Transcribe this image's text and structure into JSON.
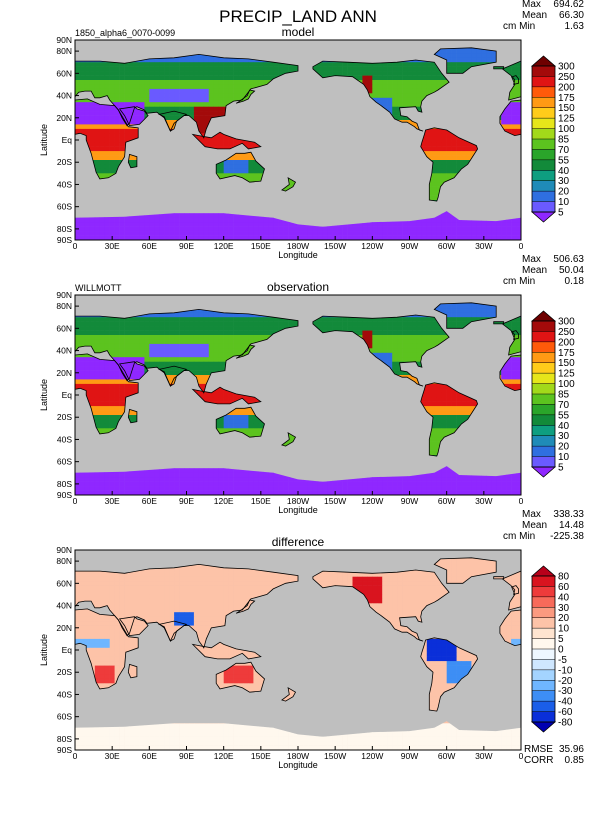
{
  "page": {
    "title": "PRECIP_LAND ANN",
    "case_label": "1850_alpha6_0070-0099",
    "units": "cm"
  },
  "axes": {
    "xlabel": "Longitude",
    "ylabel": "Latitude",
    "xticks": [
      "0",
      "30E",
      "60E",
      "90E",
      "120E",
      "150E",
      "180W",
      "150W",
      "120W",
      "90W",
      "60W",
      "30W",
      "0"
    ],
    "yticks": [
      "90N",
      "80N",
      "60N",
      "40N",
      "20N",
      "Eq",
      "20S",
      "40S",
      "60S",
      "80S",
      "90S"
    ]
  },
  "chart_data": [
    {
      "type": "heatmap",
      "panel": "model",
      "title": "model",
      "left_label": "1850_alpha6_0070-0099",
      "stats": {
        "max_label": "Max",
        "max": "694.62",
        "mean_label": "Mean",
        "mean": "66.30",
        "min_label": "cm Min",
        "min": "1.63"
      },
      "colorbar": {
        "levels": [
          "5",
          "10",
          "20",
          "30",
          "40",
          "55",
          "70",
          "85",
          "100",
          "125",
          "150",
          "175",
          "200",
          "250",
          "300"
        ],
        "colors": [
          "#8f27ff",
          "#6a5aff",
          "#2f6fe0",
          "#1f8bb8",
          "#0e9e80",
          "#128a3a",
          "#2aa52a",
          "#5cc31f",
          "#a2d91a",
          "#e6e61a",
          "#ffcc1a",
          "#ff9a14",
          "#ff5a0a",
          "#e01414",
          "#a30a0a",
          "#6e0000"
        ]
      },
      "lon_range": [
        0,
        360
      ],
      "lat_range": [
        -90,
        90
      ]
    },
    {
      "type": "heatmap",
      "panel": "observation",
      "title": "observation",
      "left_label": "WILLMOTT",
      "stats": {
        "max_label": "Max",
        "max": "506.63",
        "mean_label": "Mean",
        "mean": "50.04",
        "min_label": "cm Min",
        "min": "0.18"
      },
      "colorbar": {
        "levels": [
          "5",
          "10",
          "20",
          "30",
          "40",
          "55",
          "70",
          "85",
          "100",
          "125",
          "150",
          "175",
          "200",
          "250",
          "300"
        ],
        "colors": [
          "#8f27ff",
          "#6a5aff",
          "#2f6fe0",
          "#1f8bb8",
          "#0e9e80",
          "#128a3a",
          "#2aa52a",
          "#5cc31f",
          "#a2d91a",
          "#e6e61a",
          "#ffcc1a",
          "#ff9a14",
          "#ff5a0a",
          "#e01414",
          "#a30a0a",
          "#6e0000"
        ]
      },
      "lon_range": [
        0,
        360
      ],
      "lat_range": [
        -90,
        90
      ]
    },
    {
      "type": "heatmap",
      "panel": "difference",
      "title": "difference",
      "left_label": "",
      "stats": {
        "max_label": "Max",
        "max": "338.33",
        "mean_label": "Mean",
        "mean": "14.48",
        "min_label": "cm Min",
        "min": "-225.38",
        "rmse_label": "RMSE",
        "rmse": "35.96",
        "corr_label": "CORR",
        "corr": "0.85"
      },
      "colorbar": {
        "levels": [
          "80",
          "60",
          "40",
          "30",
          "20",
          "10",
          "5",
          "0",
          "-5",
          "-10",
          "-20",
          "-30",
          "-40",
          "-60",
          "-80"
        ],
        "colors": [
          "#b8001a",
          "#d9141f",
          "#ee3b3b",
          "#f76a5a",
          "#fb9a80",
          "#fdc3a8",
          "#fee4d0",
          "#fff8ee",
          "#eef7ff",
          "#cfe7ff",
          "#a4d4ff",
          "#6fb6ff",
          "#3d8ef5",
          "#1a5ee8",
          "#0a2fd9",
          "#0000b0"
        ]
      },
      "lon_range": [
        0,
        360
      ],
      "lat_range": [
        -90,
        90
      ]
    }
  ],
  "colors": {
    "ocean": "#bfbfbf",
    "missing": "#bfbfbf"
  }
}
